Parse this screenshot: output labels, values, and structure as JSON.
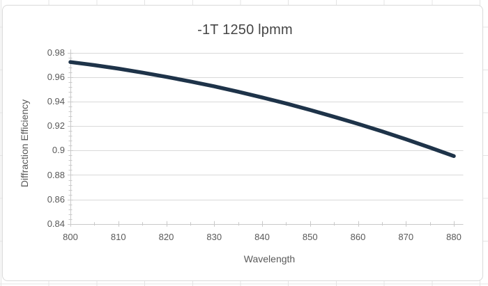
{
  "chart_data": {
    "type": "line",
    "title": "-1T 1250 lpmm",
    "xlabel": "Wavelength",
    "ylabel": "Diffraction Efficiency",
    "x": [
      800,
      805,
      810,
      815,
      820,
      825,
      830,
      835,
      840,
      845,
      850,
      855,
      860,
      865,
      870,
      875,
      880
    ],
    "y": [
      0.9725,
      0.97,
      0.9671,
      0.9639,
      0.9604,
      0.9566,
      0.9526,
      0.9482,
      0.9435,
      0.9386,
      0.9333,
      0.9277,
      0.9219,
      0.9157,
      0.9093,
      0.9025,
      0.8955
    ],
    "xlim": [
      800,
      880
    ],
    "ylim": [
      0.84,
      0.98
    ],
    "x_major_unit": 10,
    "x_minor_unit": 5,
    "y_major_unit": 0.02,
    "y_minor_unit": 0.004,
    "x_tick_labels": [
      "800",
      "810",
      "820",
      "830",
      "840",
      "850",
      "860",
      "870",
      "880"
    ],
    "y_tick_labels": [
      "0.98",
      "0.96",
      "0.94",
      "0.92",
      "0.9",
      "0.88",
      "0.86",
      "0.84"
    ],
    "gridlines": "horizontal-major-only",
    "legend": "none",
    "colors": {
      "line": "#1e3349",
      "grid": "#d9d9d9",
      "axis": "#c9c9c9",
      "tick": "#c9c9c9",
      "label_text": "#595959",
      "title_text": "#454545",
      "chart_border": "#d9d9d9",
      "worksheet_line": "#e4e4e4"
    }
  }
}
